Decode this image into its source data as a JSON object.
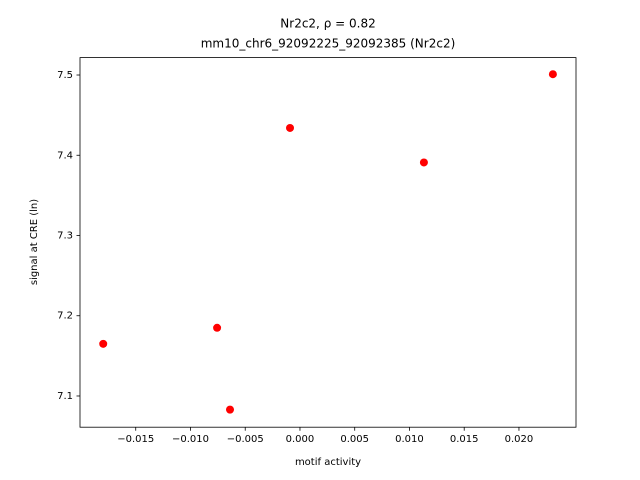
{
  "chart_data": {
    "type": "scatter",
    "title": "Nr2c2, ρ = 0.82",
    "subtitle": "mm10_chr6_92092225_92092385 (Nr2c2)",
    "xlabel": "motif activity",
    "ylabel": "signal at CRE (ln)",
    "x": [
      -0.01797,
      -0.00757,
      -0.00639,
      -0.00091,
      0.01132,
      0.0231
    ],
    "values": [
      7.165,
      7.185,
      7.083,
      7.434,
      7.391,
      7.501
    ],
    "color": "red",
    "xlim": [
      -0.02009,
      0.02521
    ],
    "ylim": [
      7.0611,
      7.5217
    ],
    "xticks": [
      {
        "value": -0.015,
        "label": "−0.015"
      },
      {
        "value": -0.01,
        "label": "−0.010"
      },
      {
        "value": -0.005,
        "label": "−0.005"
      },
      {
        "value": 0,
        "label": "0.000"
      },
      {
        "value": 0.005,
        "label": "0.005"
      },
      {
        "value": 0.01,
        "label": "0.010"
      },
      {
        "value": 0.015,
        "label": "0.015"
      },
      {
        "value": 0.02,
        "label": "0.020"
      }
    ],
    "yticks": [
      7.1,
      7.2,
      7.3,
      7.4,
      7.5
    ]
  }
}
